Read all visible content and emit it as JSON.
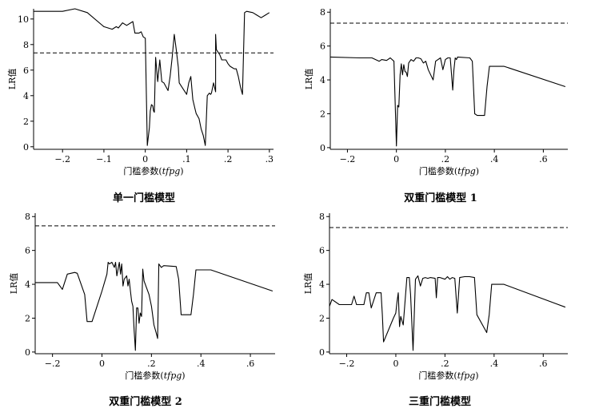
{
  "panels": [
    {
      "caption": "单一门槛模型"
    },
    {
      "caption": "双重门槛模型 1"
    },
    {
      "caption": "双重门槛模型 2"
    },
    {
      "caption": "三重门槛模型"
    }
  ],
  "chart_data": [
    {
      "type": "line",
      "title": "单一门槛模型",
      "xlabel_main": "门槛参数",
      "xlabel_var": "tfpg",
      "ylabel": "LR值",
      "xlim": [
        -0.27,
        0.31
      ],
      "ylim": [
        -0.2,
        10.8
      ],
      "xticks": [
        {
          "v": -0.2,
          "label": "−.2"
        },
        {
          "v": -0.1,
          "label": "−.1"
        },
        {
          "v": 0,
          "label": "0"
        },
        {
          "v": 0.1,
          "label": ".1"
        },
        {
          "v": 0.2,
          "label": ".2"
        },
        {
          "v": 0.3,
          "label": ".3"
        }
      ],
      "yticks": [
        {
          "v": 0,
          "label": "0"
        },
        {
          "v": 2,
          "label": "2"
        },
        {
          "v": 4,
          "label": "4"
        },
        {
          "v": 6,
          "label": "6"
        },
        {
          "v": 8,
          "label": "8"
        },
        {
          "v": 10,
          "label": "10"
        }
      ],
      "critical_value": 7.35,
      "x": [
        -0.27,
        -0.22,
        -0.2,
        -0.17,
        -0.14,
        -0.1,
        -0.09,
        -0.08,
        -0.07,
        -0.065,
        -0.055,
        -0.045,
        -0.03,
        -0.025,
        -0.015,
        -0.01,
        -0.005,
        0.0,
        0.005,
        0.01,
        0.012,
        0.015,
        0.018,
        0.02,
        0.022,
        0.025,
        0.03,
        0.035,
        0.04,
        0.045,
        0.055,
        0.06,
        0.065,
        0.07,
        0.075,
        0.08,
        0.082,
        0.09,
        0.1,
        0.105,
        0.11,
        0.115,
        0.12,
        0.123,
        0.13,
        0.135,
        0.14,
        0.145,
        0.15,
        0.155,
        0.158,
        0.16,
        0.165,
        0.17,
        0.17,
        0.172,
        0.18,
        0.185,
        0.195,
        0.2,
        0.205,
        0.21,
        0.215,
        0.22,
        0.225,
        0.23,
        0.235,
        0.24,
        0.245,
        0.26,
        0.27,
        0.28,
        0.29,
        0.3
      ],
      "y": [
        10.6,
        10.6,
        10.6,
        10.8,
        10.5,
        9.4,
        9.3,
        9.2,
        9.4,
        9.3,
        9.7,
        9.5,
        9.8,
        8.9,
        8.9,
        9.0,
        8.6,
        8.5,
        0.1,
        1.5,
        2.8,
        3.3,
        3.2,
        2.8,
        2.7,
        7.0,
        5.1,
        6.8,
        5.1,
        5.0,
        4.4,
        5.5,
        7.0,
        8.8,
        7.6,
        6.2,
        5.0,
        4.6,
        4.1,
        5.0,
        5.5,
        3.7,
        3.0,
        2.6,
        2.2,
        1.4,
        0.9,
        0.1,
        4.0,
        4.2,
        4.1,
        4.2,
        5.0,
        4.3,
        8.8,
        7.6,
        7.2,
        6.8,
        6.8,
        6.5,
        6.3,
        6.2,
        6.1,
        6.1,
        5.5,
        4.7,
        4.1,
        10.5,
        10.6,
        10.5,
        10.3,
        10.1,
        10.3,
        10.5
      ]
    },
    {
      "type": "line",
      "title": "双重门槛模型 1",
      "xlabel_main": "门槛参数",
      "xlabel_var": "tfpg",
      "ylabel": "LR值",
      "xlim": [
        -0.27,
        0.7
      ],
      "ylim": [
        -0.1,
        8.2
      ],
      "xticks": [
        {
          "v": -0.2,
          "label": "−.2"
        },
        {
          "v": 0,
          "label": "0"
        },
        {
          "v": 0.2,
          "label": ".2"
        },
        {
          "v": 0.4,
          "label": ".4"
        },
        {
          "v": 0.6,
          "label": ".6"
        }
      ],
      "yticks": [
        {
          "v": 0,
          "label": "0"
        },
        {
          "v": 2,
          "label": "2"
        },
        {
          "v": 4,
          "label": "4"
        },
        {
          "v": 6,
          "label": "6"
        },
        {
          "v": 8,
          "label": "8"
        }
      ],
      "critical_value": 7.35,
      "x": [
        -0.27,
        -0.15,
        -0.1,
        -0.07,
        -0.06,
        -0.04,
        -0.025,
        -0.01,
        0.0,
        0.005,
        0.01,
        0.015,
        0.02,
        0.025,
        0.03,
        0.035,
        0.04,
        0.045,
        0.05,
        0.06,
        0.07,
        0.08,
        0.09,
        0.1,
        0.11,
        0.12,
        0.13,
        0.14,
        0.15,
        0.16,
        0.17,
        0.18,
        0.19,
        0.2,
        0.21,
        0.22,
        0.23,
        0.235,
        0.24,
        0.245,
        0.25,
        0.3,
        0.31,
        0.32,
        0.33,
        0.36,
        0.37,
        0.38,
        0.44,
        0.69
      ],
      "y": [
        5.35,
        5.3,
        5.3,
        5.1,
        5.2,
        5.15,
        5.3,
        5.1,
        0.1,
        2.5,
        2.4,
        4.3,
        4.95,
        4.3,
        4.9,
        4.5,
        4.45,
        4.2,
        5.0,
        5.2,
        5.1,
        5.3,
        5.3,
        5.25,
        5.0,
        5.1,
        4.6,
        4.3,
        4.0,
        5.1,
        5.2,
        5.3,
        4.6,
        5.2,
        5.3,
        5.3,
        3.4,
        4.6,
        5.3,
        5.2,
        5.35,
        5.3,
        5.1,
        2.0,
        1.9,
        1.9,
        3.6,
        4.8,
        4.8,
        3.6
      ]
    },
    {
      "type": "line",
      "title": "双重门槛模型 2",
      "xlabel_main": "门槛参数",
      "xlabel_var": "tfpg",
      "ylabel": "LR值",
      "xlim": [
        -0.27,
        0.7
      ],
      "ylim": [
        -0.1,
        8.2
      ],
      "xticks": [
        {
          "v": -0.2,
          "label": "−.2"
        },
        {
          "v": 0,
          "label": "0"
        },
        {
          "v": 0.2,
          "label": ".2"
        },
        {
          "v": 0.4,
          "label": ".4"
        },
        {
          "v": 0.6,
          "label": ".6"
        }
      ],
      "yticks": [
        {
          "v": 0,
          "label": "0"
        },
        {
          "v": 2,
          "label": "2"
        },
        {
          "v": 4,
          "label": "4"
        },
        {
          "v": 6,
          "label": "6"
        },
        {
          "v": 8,
          "label": "8"
        }
      ],
      "critical_value": 7.45,
      "x": [
        -0.27,
        -0.22,
        -0.18,
        -0.16,
        -0.14,
        -0.11,
        -0.1,
        -0.07,
        -0.06,
        -0.04,
        0.0,
        0.02,
        0.025,
        0.03,
        0.04,
        0.05,
        0.055,
        0.06,
        0.07,
        0.075,
        0.08,
        0.085,
        0.09,
        0.1,
        0.105,
        0.11,
        0.115,
        0.12,
        0.125,
        0.13,
        0.135,
        0.14,
        0.145,
        0.15,
        0.155,
        0.16,
        0.165,
        0.17,
        0.18,
        0.19,
        0.2,
        0.21,
        0.22,
        0.225,
        0.23,
        0.24,
        0.25,
        0.3,
        0.31,
        0.32,
        0.36,
        0.37,
        0.38,
        0.44,
        0.69
      ],
      "y": [
        4.1,
        4.1,
        4.1,
        3.7,
        4.6,
        4.7,
        4.65,
        3.4,
        1.8,
        1.8,
        3.6,
        4.6,
        5.3,
        5.2,
        5.3,
        5.0,
        5.3,
        4.5,
        5.3,
        4.6,
        5.2,
        3.9,
        4.3,
        4.5,
        3.9,
        4.3,
        3.6,
        3.0,
        2.7,
        1.3,
        0.1,
        2.6,
        2.6,
        1.7,
        2.3,
        2.1,
        4.9,
        4.2,
        3.8,
        3.4,
        2.7,
        1.6,
        1.1,
        0.8,
        5.2,
        5.0,
        5.1,
        5.05,
        4.3,
        2.2,
        2.2,
        3.4,
        4.85,
        4.85,
        3.6
      ]
    },
    {
      "type": "line",
      "title": "三重门槛模型",
      "xlabel_main": "门槛参数",
      "xlabel_var": "tfpg",
      "ylabel": "LR值",
      "xlim": [
        -0.27,
        0.7
      ],
      "ylim": [
        -0.1,
        8.2
      ],
      "xticks": [
        {
          "v": -0.2,
          "label": "−.2"
        },
        {
          "v": 0,
          "label": "0"
        },
        {
          "v": 0.2,
          "label": ".2"
        },
        {
          "v": 0.4,
          "label": ".4"
        },
        {
          "v": 0.6,
          "label": ".6"
        }
      ],
      "yticks": [
        {
          "v": 0,
          "label": "0"
        },
        {
          "v": 2,
          "label": "2"
        },
        {
          "v": 4,
          "label": "4"
        },
        {
          "v": 6,
          "label": "6"
        },
        {
          "v": 8,
          "label": "8"
        }
      ],
      "critical_value": 7.35,
      "x": [
        -0.27,
        -0.26,
        -0.23,
        -0.18,
        -0.17,
        -0.16,
        -0.13,
        -0.12,
        -0.11,
        -0.1,
        -0.08,
        -0.06,
        -0.055,
        -0.05,
        -0.01,
        0.0,
        0.005,
        0.01,
        0.015,
        0.02,
        0.03,
        0.045,
        0.05,
        0.055,
        0.06,
        0.07,
        0.08,
        0.09,
        0.1,
        0.11,
        0.12,
        0.13,
        0.14,
        0.16,
        0.165,
        0.17,
        0.18,
        0.2,
        0.21,
        0.22,
        0.23,
        0.24,
        0.25,
        0.26,
        0.28,
        0.3,
        0.32,
        0.33,
        0.37,
        0.38,
        0.39,
        0.44,
        0.69
      ],
      "y": [
        2.7,
        3.1,
        2.8,
        2.8,
        3.3,
        2.8,
        2.8,
        3.5,
        3.5,
        2.6,
        3.5,
        3.5,
        2.2,
        0.6,
        2.0,
        2.3,
        3.0,
        3.5,
        1.5,
        2.1,
        1.6,
        4.4,
        4.4,
        4.4,
        3.4,
        0.1,
        4.3,
        4.5,
        3.9,
        4.35,
        4.4,
        4.35,
        4.4,
        4.35,
        3.2,
        4.4,
        4.4,
        4.3,
        4.45,
        4.3,
        4.4,
        4.35,
        2.3,
        4.4,
        4.45,
        4.45,
        4.4,
        2.2,
        1.15,
        2.2,
        4.0,
        4.0,
        2.65
      ]
    }
  ]
}
